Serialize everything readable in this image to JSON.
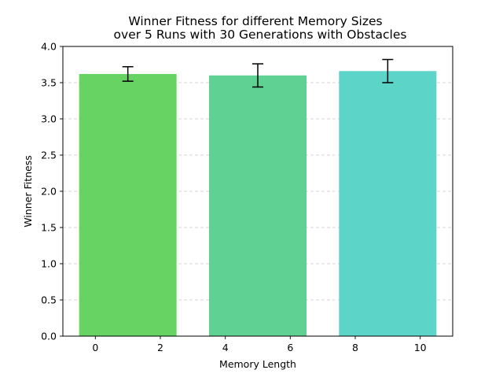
{
  "chart_data": {
    "type": "bar",
    "title_line1": "Winner Fitness for different Memory Sizes",
    "title_line2": "over 5 Runs with 30 Generations with Obstacles",
    "xlabel": "Memory Length",
    "ylabel": "Winner Fitness",
    "xlim": [
      -1.0,
      11.0
    ],
    "ylim": [
      0,
      4.0
    ],
    "x_ticks": [
      0,
      2,
      4,
      6,
      8,
      10
    ],
    "y_ticks": [
      0.0,
      0.5,
      1.0,
      1.5,
      2.0,
      2.5,
      3.0,
      3.5,
      4.0
    ],
    "bar_width": 3.0,
    "bars": [
      {
        "x": 1,
        "value": 3.62,
        "error": 0.1,
        "color": "#66d362"
      },
      {
        "x": 5,
        "value": 3.6,
        "error": 0.16,
        "color": "#5fd192"
      },
      {
        "x": 9,
        "value": 3.66,
        "error": 0.16,
        "color": "#5dd4c8"
      }
    ],
    "grid": {
      "axis": "y",
      "style": "dashed",
      "color": "#c8c8c8"
    },
    "errorbar_color": "#000000",
    "legend": "none"
  }
}
